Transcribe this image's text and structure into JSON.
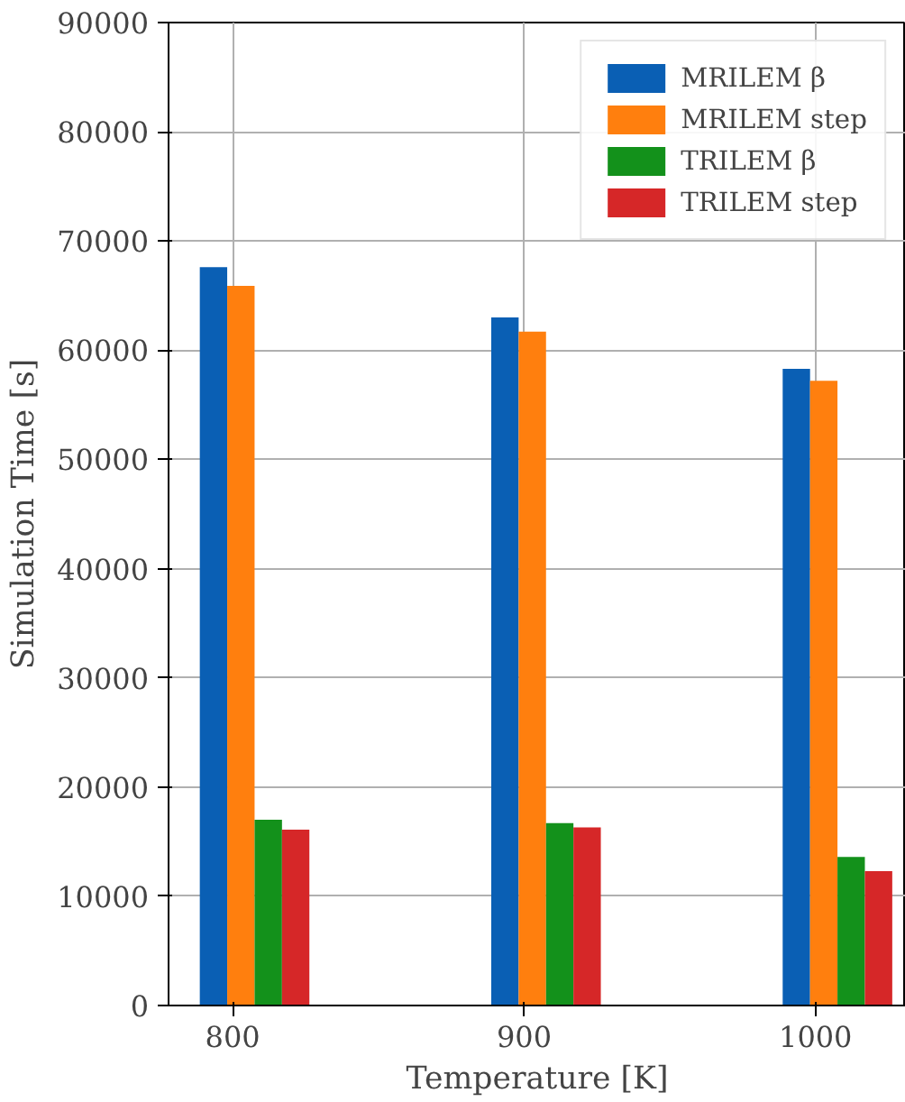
{
  "chart_data": {
    "type": "bar",
    "xlabel": "Temperature [K]",
    "ylabel": "Simulation Time [s]",
    "x": [
      800,
      900,
      1000
    ],
    "series": [
      {
        "name": "MRILEM β",
        "color": "#0a5fb4",
        "values": [
          67600,
          63000,
          58300
        ]
      },
      {
        "name": "MRILEM step",
        "color": "#ff7f0e",
        "values": [
          65900,
          61700,
          57200
        ]
      },
      {
        "name": "TRILEM β",
        "color": "#13911b",
        "values": [
          17000,
          16700,
          13600
        ]
      },
      {
        "name": "TRILEM step",
        "color": "#d62728",
        "values": [
          16100,
          16300,
          12300
        ]
      }
    ],
    "xlim": [
      778,
      1031
    ],
    "xticks": [
      800,
      900,
      1000
    ],
    "ylim": [
      0,
      90000
    ],
    "yticks": [
      0,
      10000,
      20000,
      30000,
      40000,
      50000,
      60000,
      70000,
      80000,
      90000
    ],
    "grid": true,
    "legend": "top right"
  }
}
